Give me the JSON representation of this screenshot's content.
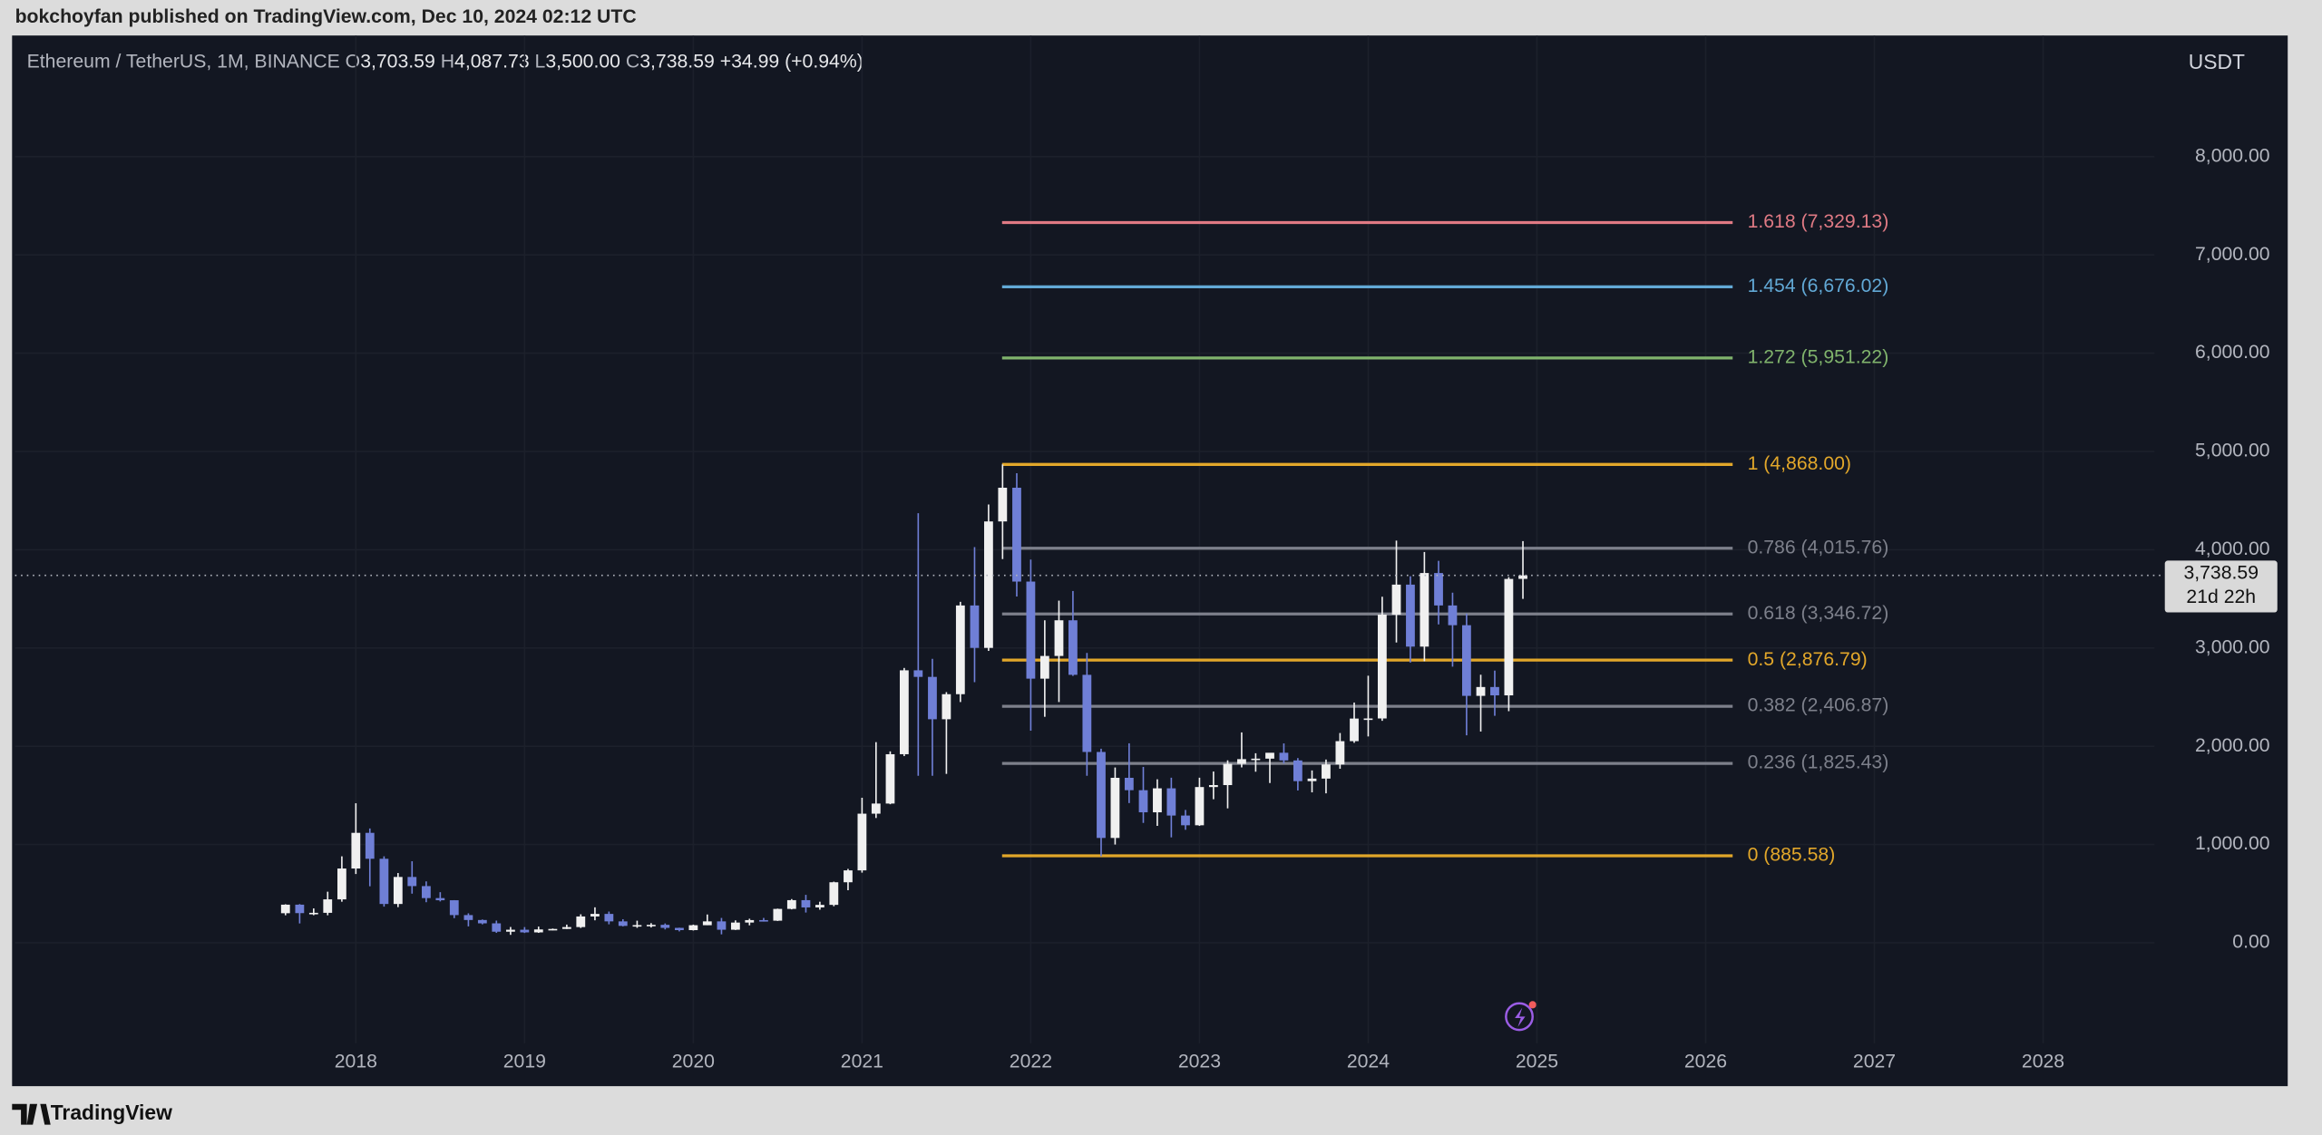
{
  "chart_data": {
    "type": "candlestick",
    "published": "bokchoyfan published on TradingView.com, Dec 10, 2024 02:12 UTC",
    "brand": "TradingView",
    "symbol": "Ethereum / TetherUS, 1M, BINANCE",
    "ohlc": [
      {
        "key": "O",
        "value": "3,703.59"
      },
      {
        "key": "H",
        "value": "4,087.73"
      },
      {
        "key": "L",
        "value": "3,500.00"
      },
      {
        "key": "C",
        "value": "3,738.59"
      }
    ],
    "change": "+34.99 (+0.94%)",
    "currency": "USDT",
    "last_price": {
      "value": 3738.59,
      "label": "3,738.59"
    },
    "countdown": "21d 22h",
    "up_color": "#f0f0f0",
    "down_color": "#6f7fd6",
    "grid": true,
    "xlim": [
      2015.98,
      2028.66
    ],
    "xticks": [
      2018,
      2019,
      2020,
      2021,
      2022,
      2023,
      2024,
      2025,
      2026,
      2027,
      2028
    ],
    "ylim": [
      -1459,
      9233
    ],
    "yticks": [
      {
        "value": 0,
        "label": "0.00"
      },
      {
        "value": 1000,
        "label": "1,000.00"
      },
      {
        "value": 2000,
        "label": "2,000.00"
      },
      {
        "value": 3000,
        "label": "3,000.00"
      },
      {
        "value": 4000,
        "label": "4,000.00"
      },
      {
        "value": 5000,
        "label": "5,000.00"
      },
      {
        "value": 6000,
        "label": "6,000.00"
      },
      {
        "value": 7000,
        "label": "7,000.00"
      },
      {
        "value": 8000,
        "label": "8,000.00"
      }
    ],
    "fib_start": 2021.83,
    "fib_end": 2026.16,
    "fib_levels": [
      {
        "label": "1.618 (7,329.13)",
        "value": 7329.13,
        "color": "#e07a84"
      },
      {
        "label": "1.454 (6,676.02)",
        "value": 6676.02,
        "color": "#62a9d6"
      },
      {
        "label": "1.272 (5,951.22)",
        "value": 5951.22,
        "color": "#80b36c"
      },
      {
        "label": "1 (4,868.00)",
        "value": 4868.0,
        "color": "#e2a72a"
      },
      {
        "label": "0.786 (4,015.76)",
        "value": 4015.76,
        "color": "#7d808b"
      },
      {
        "label": "0.618 (3,346.72)",
        "value": 3346.72,
        "color": "#7d808b"
      },
      {
        "label": "0.5 (2,876.79)",
        "value": 2876.79,
        "color": "#e2a72a"
      },
      {
        "label": "0.382 (2,406.87)",
        "value": 2406.87,
        "color": "#7d808b"
      },
      {
        "label": "0.236 (1,825.43)",
        "value": 1825.43,
        "color": "#7d808b"
      },
      {
        "label": "0 (885.58)",
        "value": 885.58,
        "color": "#e2a72a"
      }
    ],
    "candles": {
      "x": [
        2017.583,
        2017.667,
        2017.75,
        2017.833,
        2017.917,
        2018,
        2018.083,
        2018.167,
        2018.25,
        2018.333,
        2018.417,
        2018.5,
        2018.583,
        2018.667,
        2018.75,
        2018.833,
        2018.917,
        2019,
        2019.083,
        2019.167,
        2019.25,
        2019.333,
        2019.417,
        2019.5,
        2019.583,
        2019.667,
        2019.75,
        2019.833,
        2019.917,
        2020,
        2020.083,
        2020.167,
        2020.25,
        2020.333,
        2020.417,
        2020.5,
        2020.583,
        2020.667,
        2020.75,
        2020.833,
        2020.917,
        2021,
        2021.083,
        2021.167,
        2021.25,
        2021.333,
        2021.417,
        2021.5,
        2021.583,
        2021.667,
        2021.75,
        2021.833,
        2021.917,
        2022,
        2022.083,
        2022.167,
        2022.25,
        2022.333,
        2022.417,
        2022.5,
        2022.583,
        2022.667,
        2022.75,
        2022.833,
        2022.917,
        2023,
        2023.083,
        2023.167,
        2023.25,
        2023.333,
        2023.417,
        2023.5,
        2023.583,
        2023.667,
        2023.75,
        2023.833,
        2023.917,
        2024,
        2024.083,
        2024.167,
        2024.25,
        2024.333,
        2024.417,
        2024.5,
        2024.583,
        2024.667,
        2024.75,
        2024.833,
        2024.917
      ],
      "open": [
        301,
        388,
        302,
        305,
        442,
        756,
        1119,
        855,
        395,
        670,
        577,
        455,
        433,
        282,
        232,
        198,
        113,
        133,
        106,
        136,
        141,
        160,
        268,
        294,
        218,
        172,
        180,
        183,
        152,
        129,
        179,
        218,
        133,
        206,
        231,
        225,
        345,
        434,
        360,
        386,
        616,
        737,
        1314,
        1417,
        1919,
        2773,
        2706,
        2275,
        2530,
        3433,
        3001,
        4288,
        4631,
        3676,
        2688,
        2919,
        3282,
        2727,
        1942,
        1067,
        1679,
        1553,
        1328,
        1572,
        1295,
        1196,
        1585,
        1605,
        1821,
        1869,
        1874,
        1934,
        1856,
        1645,
        1671,
        1815,
        2052,
        2282,
        2283,
        3340,
        3645,
        3014,
        3763,
        3433,
        3232,
        2513,
        2603,
        2518,
        3703.59
      ],
      "high": [
        392,
        394,
        350,
        520,
        880,
        1420,
        1163,
        880,
        710,
        830,
        625,
        515,
        434,
        300,
        237,
        226,
        161,
        160,
        165,
        145,
        185,
        290,
        361,
        318,
        240,
        225,
        200,
        197,
        154,
        185,
        288,
        253,
        228,
        245,
        253,
        348,
        445,
        488,
        418,
        622,
        752,
        1476,
        2042,
        1948,
        2797,
        4372,
        2890,
        2551,
        3470,
        4027,
        4460,
        4868,
        4779,
        3900,
        3282,
        3482,
        3580,
        2950,
        1975,
        1784,
        2030,
        1790,
        1664,
        1680,
        1352,
        1680,
        1743,
        1857,
        2141,
        1929,
        1931,
        2029,
        1880,
        1754,
        1865,
        2135,
        2445,
        2718,
        3522,
        4093,
        3730,
        3977,
        3887,
        3563,
        3350,
        2728,
        2770,
        3721,
        4087.73
      ],
      "low": [
        280,
        197,
        281,
        280,
        418,
        700,
        575,
        368,
        363,
        500,
        413,
        421,
        251,
        167,
        188,
        101,
        81,
        100,
        101,
        127,
        140,
        151,
        229,
        188,
        167,
        152,
        156,
        136,
        116,
        125,
        179,
        86,
        130,
        178,
        216,
        222,
        340,
        308,
        337,
        372,
        535,
        714,
        1270,
        1410,
        1900,
        1700,
        1700,
        1719,
        2450,
        2652,
        2970,
        3905,
        3524,
        2159,
        2300,
        2450,
        2716,
        1700,
        881,
        1000,
        1422,
        1220,
        1190,
        1073,
        1150,
        1190,
        1461,
        1368,
        1785,
        1741,
        1626,
        1825,
        1550,
        1531,
        1521,
        1771,
        2035,
        2100,
        2259,
        3056,
        2852,
        2865,
        3240,
        2810,
        2111,
        2150,
        2310,
        2357,
        3500
      ],
      "close": [
        388,
        302,
        305,
        442,
        756,
        1119,
        855,
        395,
        670,
        577,
        455,
        433,
        282,
        232,
        198,
        113,
        133,
        106,
        136,
        141,
        160,
        268,
        294,
        218,
        172,
        180,
        183,
        152,
        129,
        179,
        218,
        133,
        206,
        231,
        225,
        345,
        434,
        360,
        386,
        616,
        737,
        1314,
        1417,
        1919,
        2773,
        2706,
        2275,
        2530,
        3433,
        3001,
        4288,
        4631,
        3676,
        2688,
        2919,
        3282,
        2727,
        1942,
        1067,
        1679,
        1553,
        1328,
        1572,
        1295,
        1196,
        1585,
        1605,
        1821,
        1869,
        1874,
        1934,
        1856,
        1645,
        1671,
        1815,
        2052,
        2282,
        2283,
        3340,
        3645,
        3014,
        3763,
        3433,
        3232,
        2513,
        2603,
        2518,
        3703,
        3738.59
      ]
    }
  }
}
